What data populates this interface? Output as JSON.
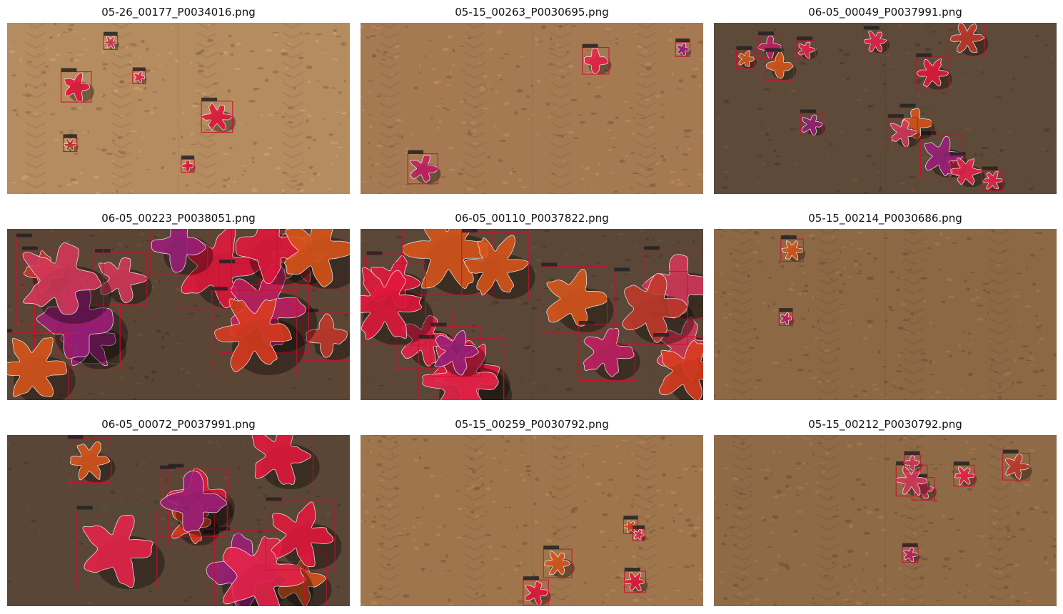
{
  "figure": {
    "panels": [
      {
        "title": "05-26_00177_P0034016.png",
        "soil": "#b58b60",
        "style": "light",
        "plants": 6
      },
      {
        "title": "05-15_00263_P0030695.png",
        "soil": "#a57a53",
        "style": "light",
        "plants": 3
      },
      {
        "title": "06-05_00049_P0037991.png",
        "soil": "#5e4a38",
        "style": "dark",
        "plants": 14
      },
      {
        "title": "06-05_00223_P0038051.png",
        "soil": "#5b4636",
        "style": "dense",
        "plants": 14
      },
      {
        "title": "06-05_00110_P0037822.png",
        "soil": "#5a4737",
        "style": "dense",
        "plants": 14
      },
      {
        "title": "05-15_00214_P0030686.png",
        "soil": "#8d6845",
        "style": "light",
        "plants": 2
      },
      {
        "title": "06-05_00072_P0037991.png",
        "soil": "#5a4636",
        "style": "dense",
        "plants": 10
      },
      {
        "title": "05-15_00259_P0030792.png",
        "soil": "#9f754d",
        "style": "light",
        "plants": 5
      },
      {
        "title": "05-15_00212_P0030792.png",
        "soil": "#8f6a46",
        "style": "light",
        "plants": 6
      }
    ]
  },
  "colors": {
    "mask_palette": [
      "#e8234a",
      "#d93b1f",
      "#c21f63",
      "#9b1f7a",
      "#d8551a",
      "#e2183c",
      "#c0392b",
      "#d4385a"
    ],
    "box": "#c8102e",
    "outline": "#ffffff"
  }
}
